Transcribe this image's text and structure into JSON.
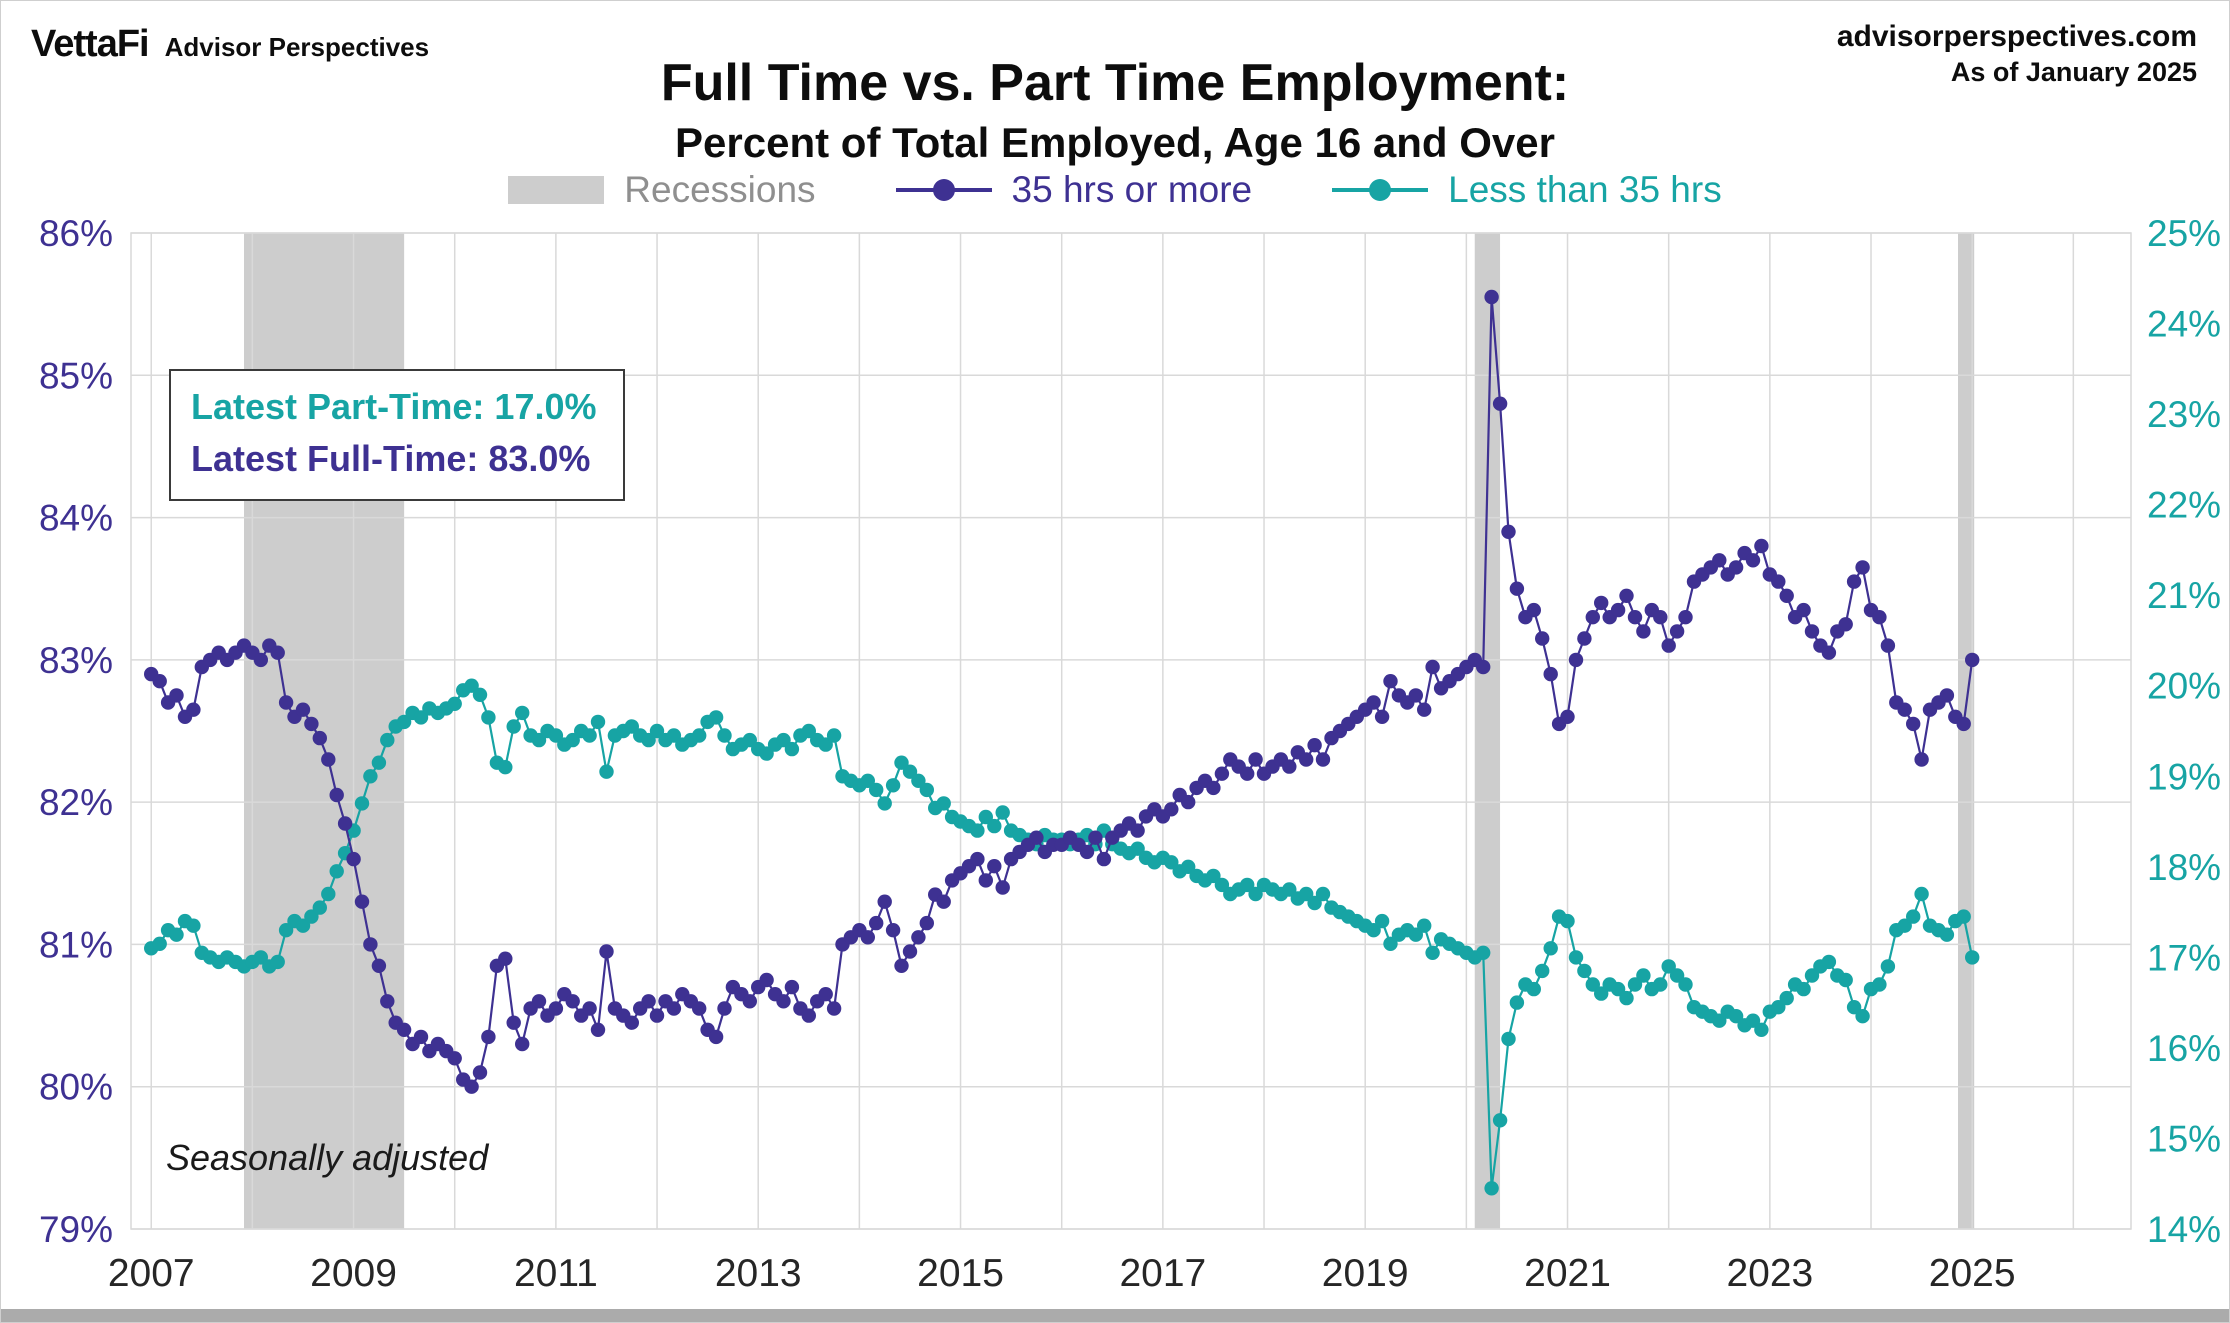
{
  "header": {
    "logo_primary": "VettaFi",
    "logo_secondary": "Advisor Perspectives",
    "site": "advisorperspectives.com",
    "as_of": "As of January 2025"
  },
  "title": {
    "line1": "Full Time vs. Part Time Employment:",
    "line2": "Percent of Total Employed, Age 16 and Over"
  },
  "legend": [
    {
      "label": "Recessions",
      "type": "band"
    },
    {
      "label": "35 hrs or more",
      "type": "line-dot"
    },
    {
      "label": "Less than 35 hrs",
      "type": "line-dot"
    }
  ],
  "annotation": {
    "part_time": "Latest Part-Time: 17.0%",
    "full_time": "Latest Full-Time: 83.0%"
  },
  "footnote": "Seasonally adjusted",
  "colors": {
    "full_time": "#3E3192",
    "part_time": "#17A4A4",
    "recession_band": "#CDCDCD",
    "grid": "#D9D9D9",
    "legend_gray": "#8F8F8F",
    "axis_text_dark": "#262626"
  },
  "chart_data": {
    "type": "line",
    "title": "Full Time vs. Part Time Employment: Percent of Total Employed, Age 16 and Over",
    "x_start": "2007-01",
    "x_end": "2025-01",
    "frequency": "monthly",
    "x_ticks": [
      2007,
      2009,
      2011,
      2013,
      2015,
      2017,
      2019,
      2021,
      2023,
      2025
    ],
    "left_axis": {
      "min": 79,
      "max": 86,
      "step": 1,
      "suffix": "%",
      "series": "35 hrs or more"
    },
    "right_axis": {
      "min": 14,
      "max": 25,
      "step": 1,
      "suffix": "%",
      "series": "Less than 35 hrs"
    },
    "grid": true,
    "legend_position": "top",
    "recessions": [
      {
        "start": 2007.917,
        "end": 2009.5
      },
      {
        "start": 2020.083,
        "end": 2020.333
      }
    ],
    "edge_band": {
      "start": 2024.86,
      "end": 2025.02
    },
    "series": [
      {
        "name": "35 hrs or more",
        "axis": "left",
        "color": "#3E3192",
        "values": [
          82.9,
          82.85,
          82.7,
          82.75,
          82.6,
          82.65,
          82.95,
          83.0,
          83.05,
          83.0,
          83.05,
          83.1,
          83.05,
          83.0,
          83.1,
          83.05,
          82.7,
          82.6,
          82.65,
          82.55,
          82.45,
          82.3,
          82.05,
          81.85,
          81.6,
          81.3,
          81.0,
          80.85,
          80.6,
          80.45,
          80.4,
          80.3,
          80.35,
          80.25,
          80.3,
          80.25,
          80.2,
          80.05,
          80.0,
          80.1,
          80.35,
          80.85,
          80.9,
          80.45,
          80.3,
          80.55,
          80.6,
          80.5,
          80.55,
          80.65,
          80.6,
          80.5,
          80.55,
          80.4,
          80.95,
          80.55,
          80.5,
          80.45,
          80.55,
          80.6,
          80.5,
          80.6,
          80.55,
          80.65,
          80.6,
          80.55,
          80.4,
          80.35,
          80.55,
          80.7,
          80.65,
          80.6,
          80.7,
          80.75,
          80.65,
          80.6,
          80.7,
          80.55,
          80.5,
          80.6,
          80.65,
          80.55,
          81.0,
          81.05,
          81.1,
          81.05,
          81.15,
          81.3,
          81.1,
          80.85,
          80.95,
          81.05,
          81.15,
          81.35,
          81.3,
          81.45,
          81.5,
          81.55,
          81.6,
          81.45,
          81.55,
          81.4,
          81.6,
          81.65,
          81.7,
          81.75,
          81.65,
          81.7,
          81.7,
          81.75,
          81.7,
          81.65,
          81.75,
          81.6,
          81.75,
          81.8,
          81.85,
          81.8,
          81.9,
          81.95,
          81.9,
          81.95,
          82.05,
          82.0,
          82.1,
          82.15,
          82.1,
          82.2,
          82.3,
          82.25,
          82.2,
          82.3,
          82.2,
          82.25,
          82.3,
          82.25,
          82.35,
          82.3,
          82.4,
          82.3,
          82.45,
          82.5,
          82.55,
          82.6,
          82.65,
          82.7,
          82.6,
          82.85,
          82.75,
          82.7,
          82.75,
          82.65,
          82.95,
          82.8,
          82.85,
          82.9,
          82.95,
          83.0,
          82.95,
          85.55,
          84.8,
          83.9,
          83.5,
          83.3,
          83.35,
          83.15,
          82.9,
          82.55,
          82.6,
          83.0,
          83.15,
          83.3,
          83.4,
          83.3,
          83.35,
          83.45,
          83.3,
          83.2,
          83.35,
          83.3,
          83.1,
          83.2,
          83.3,
          83.55,
          83.6,
          83.65,
          83.7,
          83.6,
          83.65,
          83.75,
          83.7,
          83.8,
          83.6,
          83.55,
          83.45,
          83.3,
          83.35,
          83.2,
          83.1,
          83.05,
          83.2,
          83.25,
          83.55,
          83.65,
          83.35,
          83.3,
          83.1,
          82.7,
          82.65,
          82.55,
          82.3,
          82.65,
          82.7,
          82.75,
          82.6,
          82.55,
          83.0
        ]
      },
      {
        "name": "Less than 35 hrs",
        "axis": "right",
        "color": "#17A4A4",
        "values": [
          17.1,
          17.15,
          17.3,
          17.25,
          17.4,
          17.35,
          17.05,
          17.0,
          16.95,
          17.0,
          16.95,
          16.9,
          16.95,
          17.0,
          16.9,
          16.95,
          17.3,
          17.4,
          17.35,
          17.45,
          17.55,
          17.7,
          17.95,
          18.15,
          18.4,
          18.7,
          19.0,
          19.15,
          19.4,
          19.55,
          19.6,
          19.7,
          19.65,
          19.75,
          19.7,
          19.75,
          19.8,
          19.95,
          20.0,
          19.9,
          19.65,
          19.15,
          19.1,
          19.55,
          19.7,
          19.45,
          19.4,
          19.5,
          19.45,
          19.35,
          19.4,
          19.5,
          19.45,
          19.6,
          19.05,
          19.45,
          19.5,
          19.55,
          19.45,
          19.4,
          19.5,
          19.4,
          19.45,
          19.35,
          19.4,
          19.45,
          19.6,
          19.65,
          19.45,
          19.3,
          19.35,
          19.4,
          19.3,
          19.25,
          19.35,
          19.4,
          19.3,
          19.45,
          19.5,
          19.4,
          19.35,
          19.45,
          19.0,
          18.95,
          18.9,
          18.95,
          18.85,
          18.7,
          18.9,
          19.15,
          19.05,
          18.95,
          18.85,
          18.65,
          18.7,
          18.55,
          18.5,
          18.45,
          18.4,
          18.55,
          18.45,
          18.6,
          18.4,
          18.35,
          18.3,
          18.25,
          18.35,
          18.3,
          18.3,
          18.25,
          18.3,
          18.35,
          18.25,
          18.4,
          18.25,
          18.2,
          18.15,
          18.2,
          18.1,
          18.05,
          18.1,
          18.05,
          17.95,
          18.0,
          17.9,
          17.85,
          17.9,
          17.8,
          17.7,
          17.75,
          17.8,
          17.7,
          17.8,
          17.75,
          17.7,
          17.75,
          17.65,
          17.7,
          17.6,
          17.7,
          17.55,
          17.5,
          17.45,
          17.4,
          17.35,
          17.3,
          17.4,
          17.15,
          17.25,
          17.3,
          17.25,
          17.35,
          17.05,
          17.2,
          17.15,
          17.1,
          17.05,
          17.0,
          17.05,
          14.45,
          15.2,
          16.1,
          16.5,
          16.7,
          16.65,
          16.85,
          17.1,
          17.45,
          17.4,
          17.0,
          16.85,
          16.7,
          16.6,
          16.7,
          16.65,
          16.55,
          16.7,
          16.8,
          16.65,
          16.7,
          16.9,
          16.8,
          16.7,
          16.45,
          16.4,
          16.35,
          16.3,
          16.4,
          16.35,
          16.25,
          16.3,
          16.2,
          16.4,
          16.45,
          16.55,
          16.7,
          16.65,
          16.8,
          16.9,
          16.95,
          16.8,
          16.75,
          16.45,
          16.35,
          16.65,
          16.7,
          16.9,
          17.3,
          17.35,
          17.45,
          17.7,
          17.35,
          17.3,
          17.25,
          17.4,
          17.45,
          17.0
        ]
      }
    ]
  }
}
